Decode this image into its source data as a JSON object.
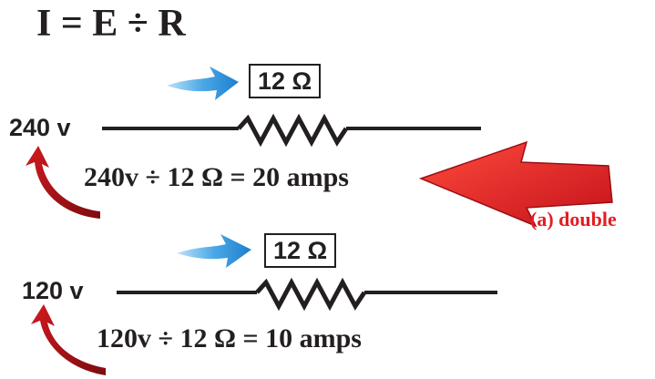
{
  "formula": "I = E ÷ R",
  "circuits": [
    {
      "voltage": "240 v",
      "resistance": "12 Ω",
      "equation": "240v ÷ 12 Ω = 20 amps"
    },
    {
      "voltage": "120 v",
      "resistance": "12 Ω",
      "equation": "120v ÷ 12 Ω = 10 amps"
    }
  ],
  "callout": "(a) double",
  "colors": {
    "callout_red": "#e31e24",
    "pointer_blue": "#2a8fd8",
    "curve_red": "#b3151b",
    "ink": "#231f20"
  }
}
